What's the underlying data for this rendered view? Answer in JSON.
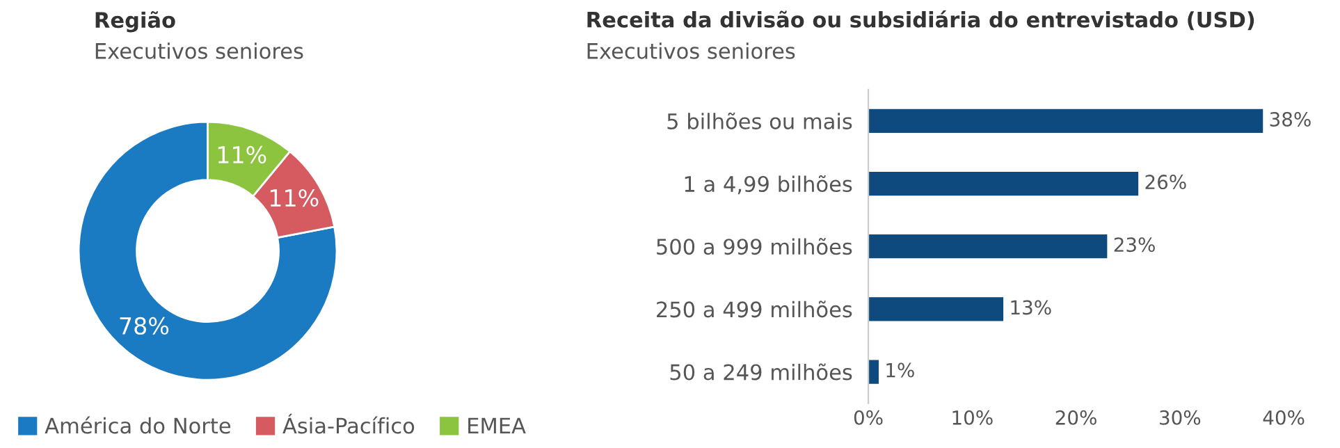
{
  "chart_data": [
    {
      "type": "donut",
      "title": "Região",
      "subtitle": "Executivos seniores",
      "categories": [
        "América do Norte",
        "Ásia-Pacífico",
        "EMEA"
      ],
      "values": [
        78,
        11,
        11
      ],
      "colors": [
        "#1a7bc3",
        "#d65b60",
        "#8cc43f"
      ],
      "value_labels": [
        "78%",
        "11%",
        "11%"
      ],
      "legend": "bottom"
    },
    {
      "type": "bar",
      "orientation": "horizontal",
      "title": "Receita da divisão ou subsidiária do entrevistado (USD)",
      "subtitle": "Executivos seniores",
      "categories": [
        "5 bilhões ou mais",
        "1 a 4,99 bilhões",
        "500 a 999 milhões",
        "250 a 499 milhões",
        "50 a 249 milhões"
      ],
      "values": [
        38,
        26,
        23,
        13,
        1
      ],
      "color": "#0e4a7e",
      "value_labels": [
        "38%",
        "26%",
        "23%",
        "13%",
        "1%"
      ],
      "xlim": [
        0,
        40
      ],
      "xticks": [
        {
          "value": 0,
          "label": "0%"
        },
        {
          "value": 10,
          "label": "10%"
        },
        {
          "value": 20,
          "label": "20%"
        },
        {
          "value": 30,
          "label": "30%"
        },
        {
          "value": 40,
          "label": "40%"
        }
      ],
      "grid": false
    }
  ]
}
